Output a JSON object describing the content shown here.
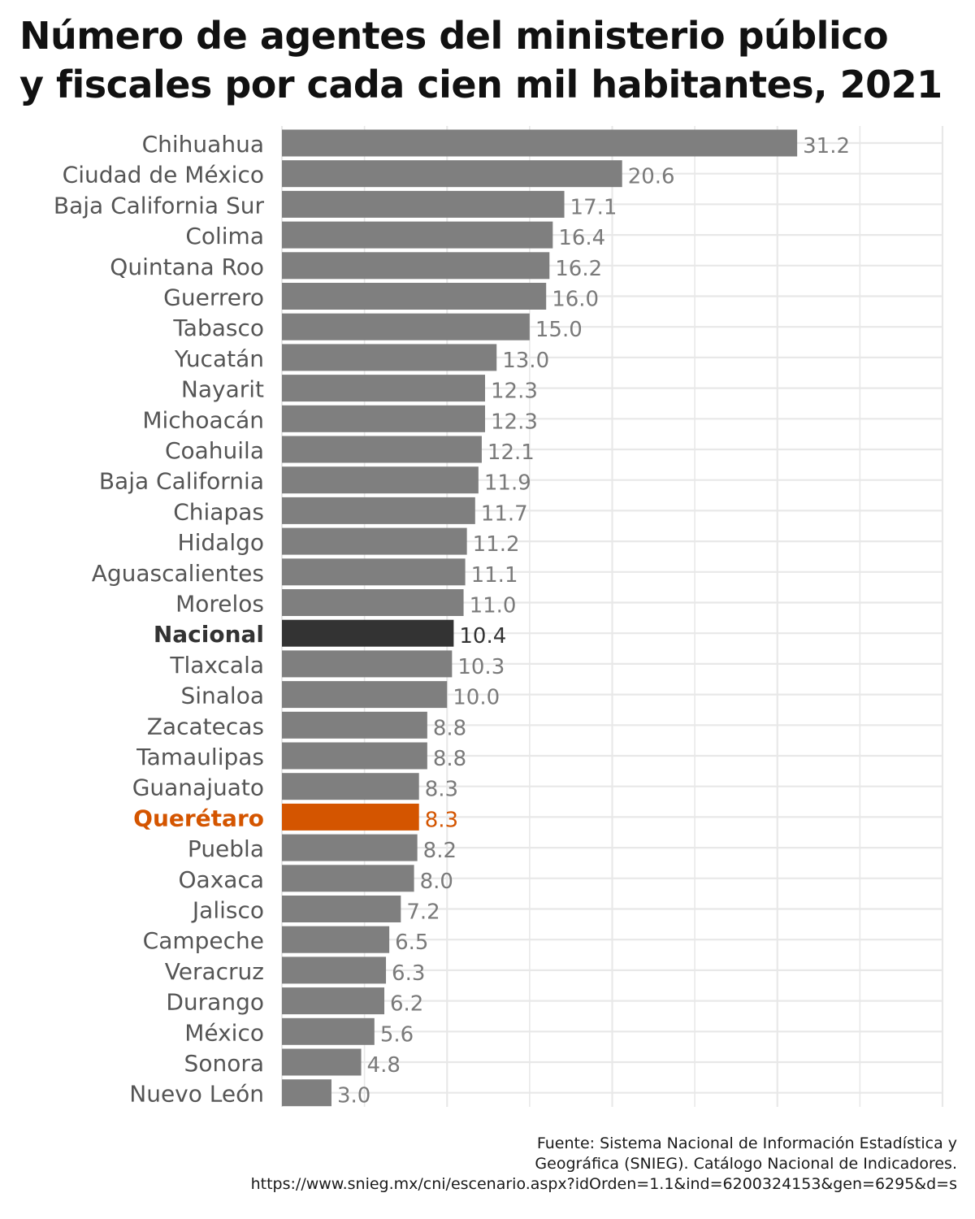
{
  "title_lines": [
    "Número de agentes del ministerio público",
    "y fiscales por cada cien mil habitantes, 2021"
  ],
  "caption_lines": [
    "Fuente: Sistema Nacional de Información Estadística y",
    "Geográfica (SNIEG). Catálogo Nacional de Indicadores.",
    "https://www.snieg.mx/cni/escenario.aspx?idOrden=1.1&ind=6200324153&gen=6295&d=s"
  ],
  "colors": {
    "default_bar": "#7f7f7f",
    "default_label": "#555555",
    "default_value": "#7a7a7a",
    "nacional": "#333333",
    "highlight": "#d45500",
    "grid": "#e8e8e8"
  },
  "chart_data": {
    "type": "bar",
    "orientation": "horizontal",
    "categories": [
      "Chihuahua",
      "Ciudad de México",
      "Baja California Sur",
      "Colima",
      "Quintana Roo",
      "Guerrero",
      "Tabasco",
      "Yucatán",
      "Nayarit",
      "Michoacán",
      "Coahuila",
      "Baja California",
      "Chiapas",
      "Hidalgo",
      "Aguascalientes",
      "Morelos",
      "Nacional",
      "Tlaxcala",
      "Sinaloa",
      "Zacatecas",
      "Tamaulipas",
      "Guanajuato",
      "Querétaro",
      "Puebla",
      "Oaxaca",
      "Jalisco",
      "Campeche",
      "Veracruz",
      "Durango",
      "México",
      "Sonora",
      "Nuevo León"
    ],
    "values": [
      31.2,
      20.6,
      17.1,
      16.4,
      16.2,
      16.0,
      15.0,
      13.0,
      12.3,
      12.3,
      12.1,
      11.9,
      11.7,
      11.2,
      11.1,
      11.0,
      10.4,
      10.3,
      10.0,
      8.8,
      8.8,
      8.3,
      8.3,
      8.2,
      8.0,
      7.2,
      6.5,
      6.3,
      6.2,
      5.6,
      4.8,
      3.0
    ],
    "value_labels": [
      "31.2",
      "20.6",
      "17.1",
      "16.4",
      "16.2",
      "16.0",
      "15.0",
      "13.0",
      "12.3",
      "12.3",
      "12.1",
      "11.9",
      "11.7",
      "11.2",
      "11.1",
      "11.0",
      "10.4",
      "10.3",
      "10.0",
      "8.8",
      "8.8",
      "8.3",
      "8.3",
      "8.2",
      "8.0",
      "7.2",
      "6.5",
      "6.3",
      "6.2",
      "5.6",
      "4.8",
      "3.0"
    ],
    "highlight": {
      "Nacional": "nacional",
      "Querétaro": "highlight"
    },
    "xlim": [
      0,
      40
    ],
    "grid": true,
    "axis_tick_labels_shown": false,
    "title": "Número de agentes del ministerio público y fiscales por cada cien mil habitantes, 2021",
    "xlabel": "",
    "ylabel": ""
  }
}
